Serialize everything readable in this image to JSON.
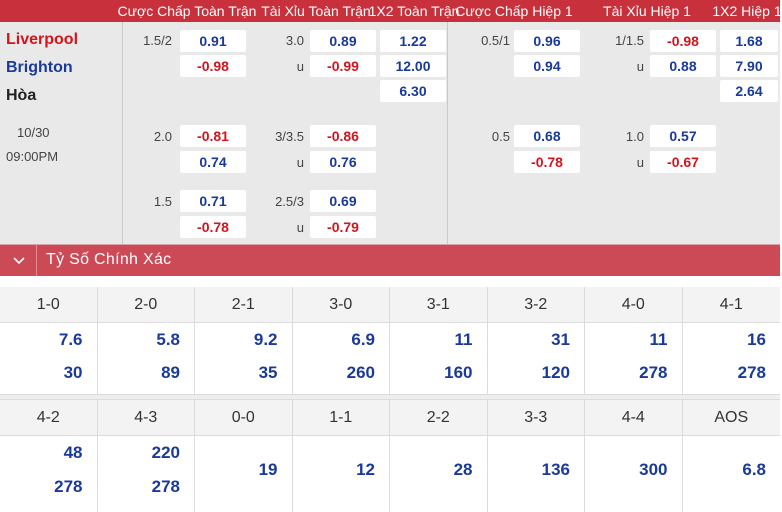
{
  "header": {
    "cols": [
      "Cược Chấp Toàn Trận",
      "Tài Xỉu Toàn Trận",
      "1X2 Toàn Trận",
      "Cược Chấp Hiệp 1",
      "Tài Xỉu Hiệp 1",
      "1X2 Hiệp 1"
    ]
  },
  "match": {
    "home": "Liverpool",
    "away": "Brighton",
    "draw": "Hòa",
    "date": "10/30",
    "time": "09:00PM"
  },
  "odds": {
    "ft_hdp": [
      {
        "line": "1.5/2",
        "home": "0.91",
        "away": "-0.98"
      },
      {
        "line": "2.0",
        "home": "-0.81",
        "away": "0.74"
      },
      {
        "line": "1.5",
        "home": "0.71",
        "away": "-0.78"
      }
    ],
    "ft_ou": [
      {
        "line": "3.0",
        "u_label": "u",
        "over": "0.89",
        "under": "-0.99"
      },
      {
        "line": "3/3.5",
        "u_label": "u",
        "over": "-0.86",
        "under": "0.76"
      },
      {
        "line": "2.5/3",
        "u_label": "u",
        "over": "0.69",
        "under": "-0.79"
      }
    ],
    "ft_1x2": {
      "home": "1.22",
      "away": "12.00",
      "draw": "6.30"
    },
    "h1_hdp": [
      {
        "line": "0.5/1",
        "home": "0.96",
        "away": "0.94"
      },
      {
        "line": "0.5",
        "home": "0.68",
        "away": "-0.78"
      }
    ],
    "h1_ou": [
      {
        "line": "1/1.5",
        "u_label": "u",
        "over": "-0.98",
        "under": "0.88"
      },
      {
        "line": "1.0",
        "u_label": "u",
        "over": "0.57",
        "under": "-0.67"
      }
    ],
    "h1_1x2": {
      "home": "1.68",
      "away": "7.90",
      "draw": "2.64"
    }
  },
  "section": {
    "title": "Tỷ Số Chính Xác",
    "icon": "chevron-down-icon"
  },
  "scores_row1": [
    {
      "score": "1-0",
      "home": "7.6",
      "away": "30"
    },
    {
      "score": "2-0",
      "home": "5.8",
      "away": "89"
    },
    {
      "score": "2-1",
      "home": "9.2",
      "away": "35"
    },
    {
      "score": "3-0",
      "home": "6.9",
      "away": "260"
    },
    {
      "score": "3-1",
      "home": "11",
      "away": "160"
    },
    {
      "score": "3-2",
      "home": "31",
      "away": "120"
    },
    {
      "score": "4-0",
      "home": "11",
      "away": "278"
    },
    {
      "score": "4-1",
      "home": "16",
      "away": "278"
    }
  ],
  "scores_row2": [
    {
      "score": "4-2",
      "home": "48",
      "away": "278"
    },
    {
      "score": "4-3",
      "home": "220",
      "away": "278"
    },
    {
      "score": "0-0",
      "value": "19"
    },
    {
      "score": "1-1",
      "value": "12"
    },
    {
      "score": "2-2",
      "value": "28"
    },
    {
      "score": "3-3",
      "value": "136"
    },
    {
      "score": "4-4",
      "value": "300"
    },
    {
      "score": "AOS",
      "value": "6.8"
    }
  ],
  "colors": {
    "header_red": "#c8303c",
    "section_red": "#cc4a55",
    "positive_blue": "#1a3a9a",
    "negative_red": "#d4141d"
  }
}
